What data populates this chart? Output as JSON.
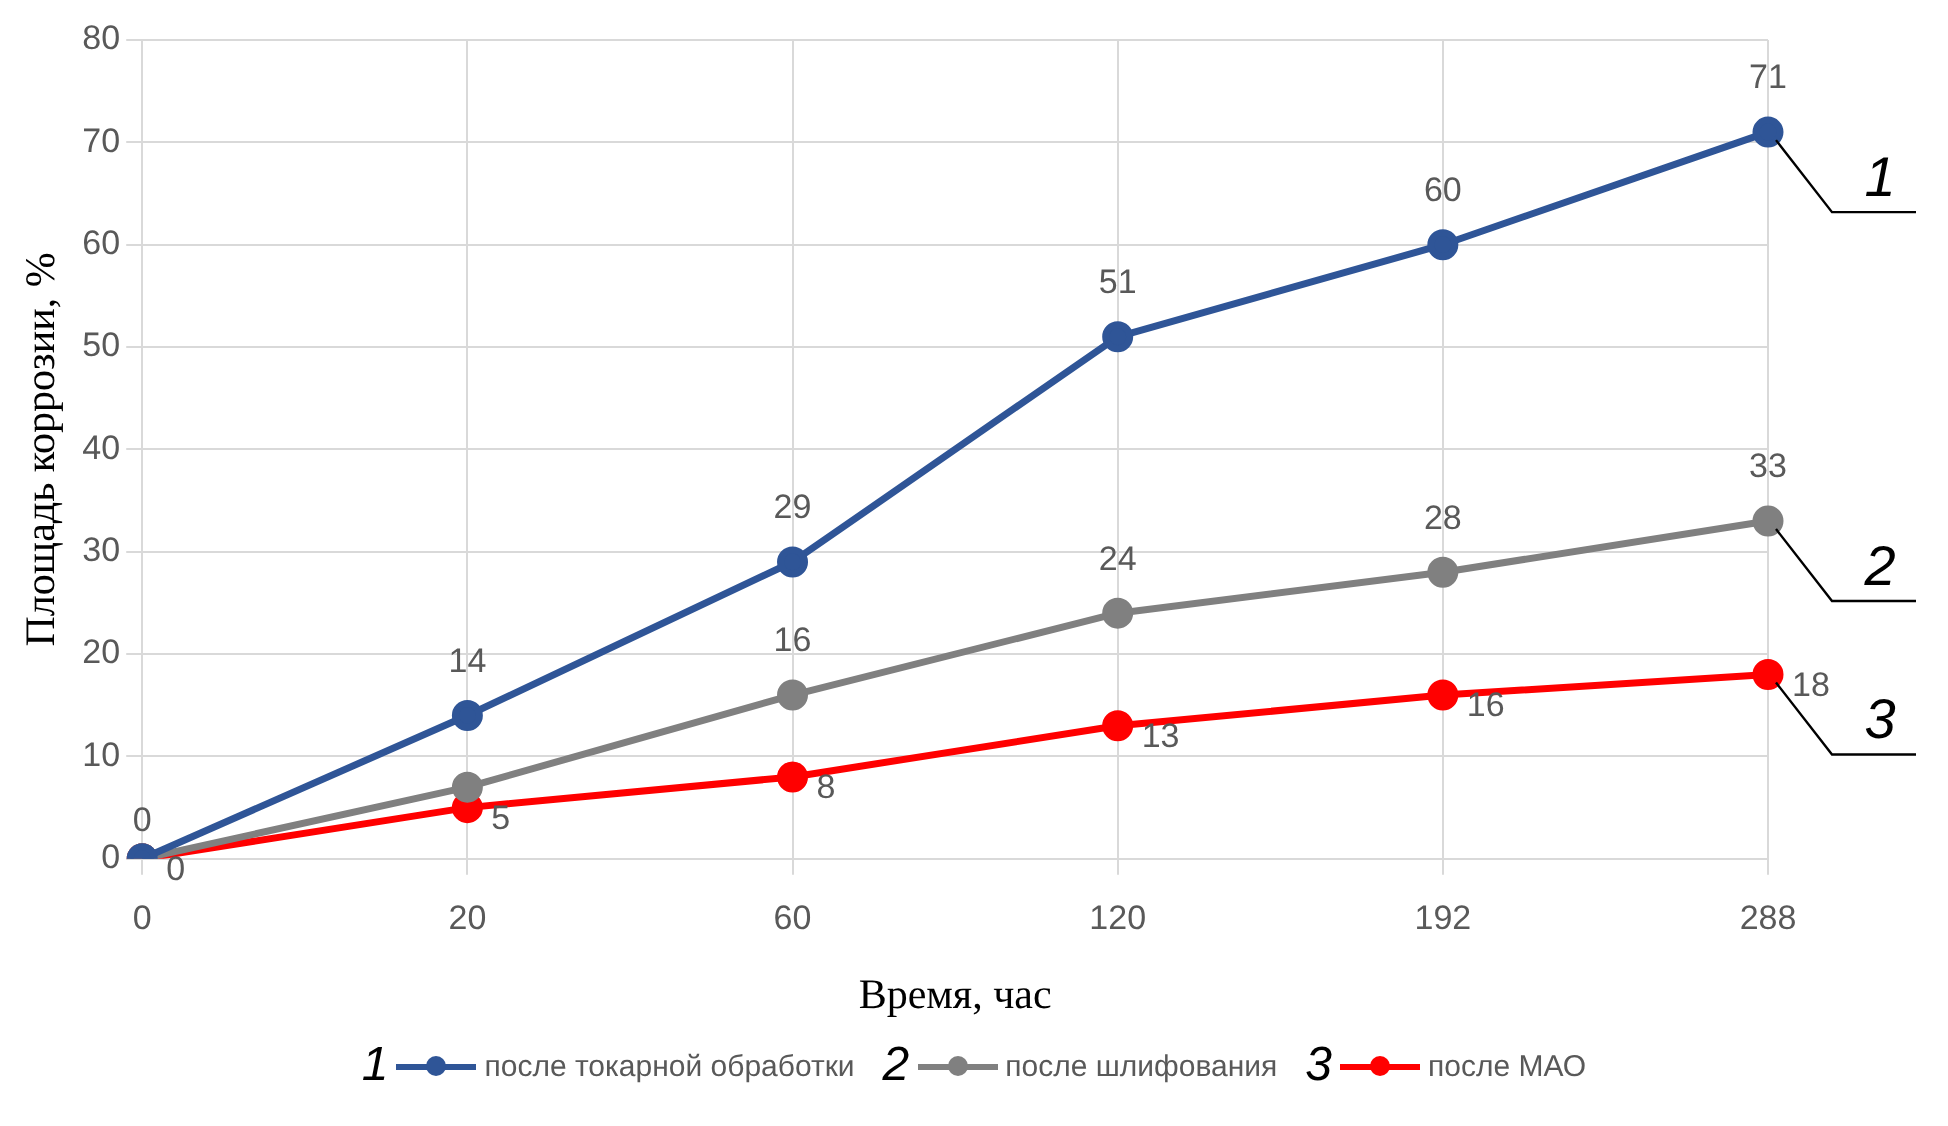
{
  "chart_data": {
    "type": "line",
    "xlabel": "Время, час",
    "ylabel": "Площадь коррозии, %",
    "categories": [
      "0",
      "20",
      "60",
      "120",
      "192",
      "288"
    ],
    "ylim": [
      0,
      80
    ],
    "yticks": [
      0,
      10,
      20,
      30,
      40,
      50,
      60,
      70,
      80
    ],
    "grid": true,
    "legend": "bottom",
    "marker": "circle",
    "line_style": "solid",
    "series": [
      {
        "name": "после токарной обработки",
        "color": "#2f5597",
        "values": [
          0,
          14,
          29,
          51,
          60,
          71
        ],
        "value_labels": [
          "0",
          "14",
          "29",
          "51",
          "60",
          "71"
        ]
      },
      {
        "name": "после шлифования",
        "color": "#808080",
        "values": [
          0,
          7,
          16,
          24,
          28,
          33
        ],
        "value_labels": [
          null,
          null,
          "16",
          "24",
          "28",
          "33"
        ]
      },
      {
        "name": "после МАО",
        "color": "#ff0000",
        "values": [
          0,
          5,
          8,
          13,
          16,
          18
        ],
        "value_labels": [
          "0",
          "5",
          "8",
          "13",
          "16",
          "18"
        ]
      }
    ],
    "annotations": [
      {
        "text": "1",
        "x": "288",
        "y": 71
      },
      {
        "text": "2",
        "x": "288",
        "y": 33
      },
      {
        "text": "3",
        "x": "288",
        "y": 18
      }
    ]
  }
}
